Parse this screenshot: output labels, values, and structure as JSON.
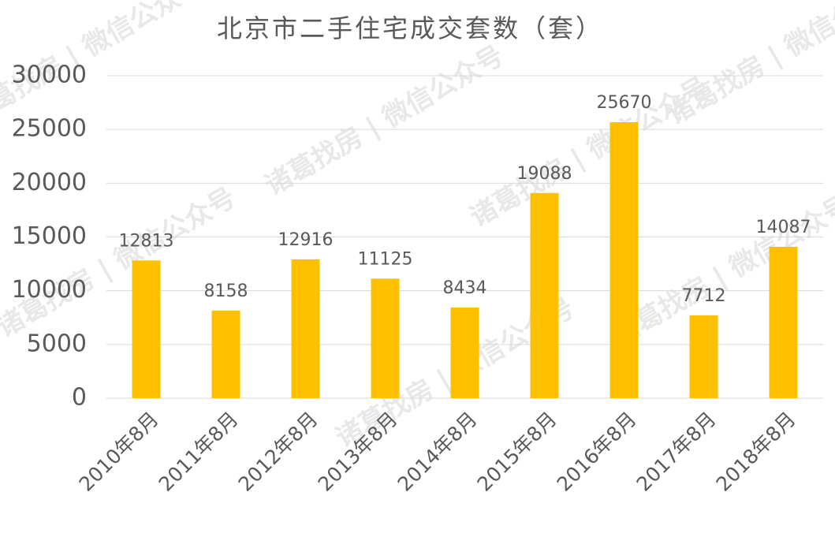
{
  "chart_data": {
    "type": "bar",
    "title": "北京市二手住宅成交套数（套）",
    "categories": [
      "2010年8月",
      "2011年8月",
      "2012年8月",
      "2013年8月",
      "2014年8月",
      "2015年8月",
      "2016年8月",
      "2017年8月",
      "2018年8月"
    ],
    "values": [
      12813,
      8158,
      12916,
      11125,
      8434,
      19088,
      25670,
      7712,
      14087
    ],
    "color": "#ffc000",
    "ylim": [
      0,
      30000
    ],
    "yticks": [
      0,
      5000,
      10000,
      15000,
      20000,
      25000,
      30000
    ],
    "grid": true,
    "watermark": "诸葛找房 | 微信公众号"
  }
}
